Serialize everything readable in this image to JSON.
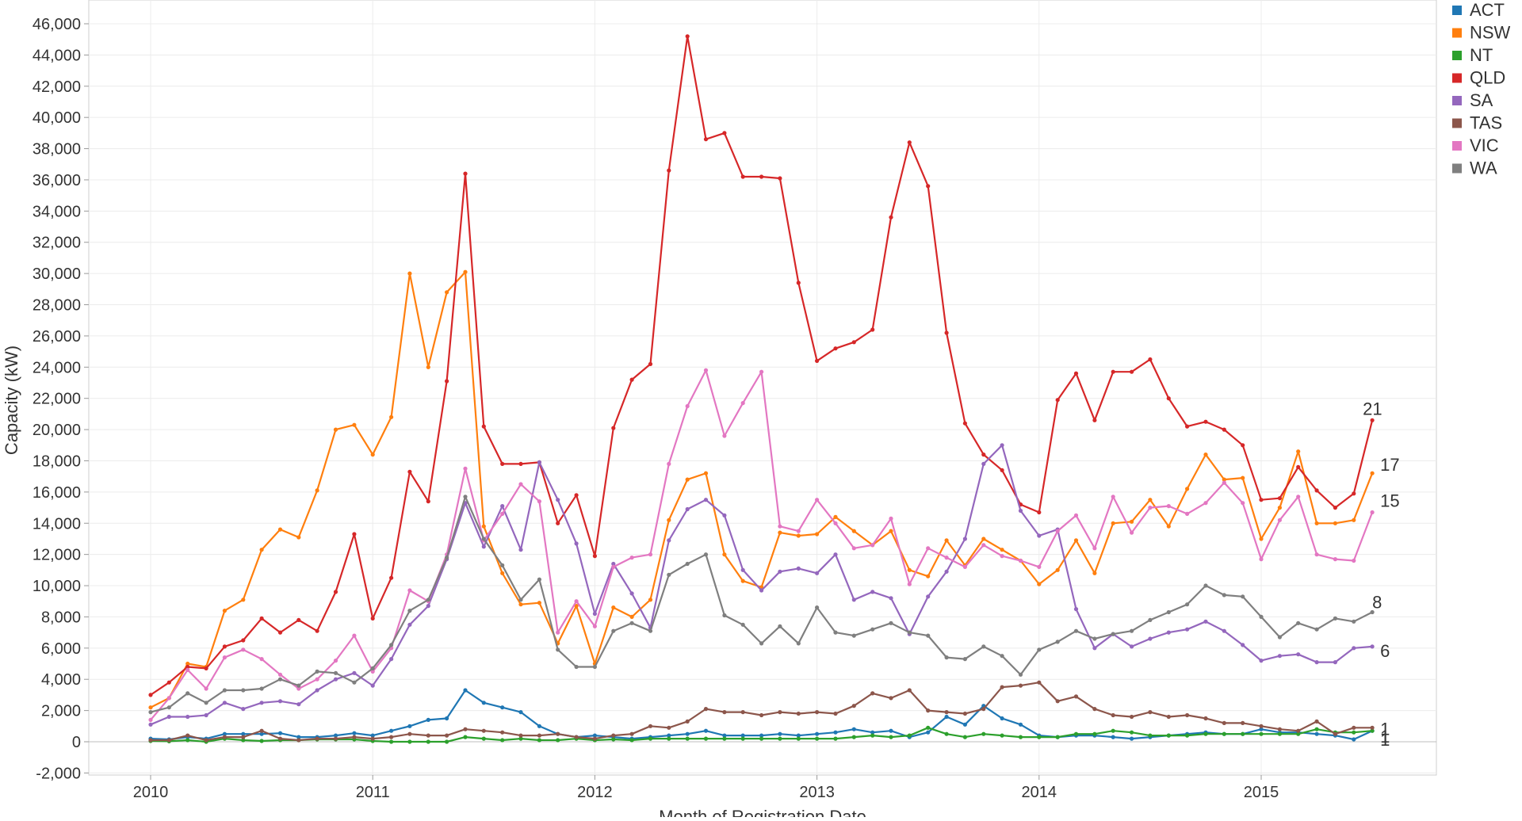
{
  "chart_data": {
    "type": "line",
    "xlabel": "Month of Registration Date",
    "ylabel": "Capacity (kW)",
    "ylim": [
      -3000,
      47000
    ],
    "xlim": [
      "2009-09",
      "2015-12"
    ],
    "grid": true,
    "legend_position": "top-right",
    "x_ticks": [
      "2010",
      "2011",
      "2012",
      "2013",
      "2014",
      "2015"
    ],
    "y_ticks": [
      "-2,000",
      "0",
      "2,000",
      "4,000",
      "6,000",
      "8,000",
      "10,000",
      "12,000",
      "14,000",
      "16,000",
      "18,000",
      "20,000",
      "22,000",
      "24,000",
      "26,000",
      "28,000",
      "30,000",
      "32,000",
      "34,000",
      "36,000",
      "38,000",
      "40,000",
      "42,000",
      "44,000",
      "46,000"
    ],
    "x_start": "2010-01",
    "series": [
      {
        "name": "ACT",
        "color": "#1f77b4",
        "end_label": "1",
        "values": [
          200,
          150,
          300,
          200,
          500,
          500,
          500,
          550,
          300,
          300,
          400,
          550,
          400,
          700,
          1000,
          1400,
          1500,
          3300,
          2500,
          2200,
          1900,
          1000,
          500,
          300,
          400,
          300,
          200,
          300,
          400,
          500,
          700,
          400,
          400,
          400,
          500,
          400,
          500,
          600,
          800,
          600,
          700,
          300,
          600,
          1600,
          1100,
          2300,
          1500,
          1100,
          400,
          300,
          400,
          400,
          300,
          200,
          300,
          400,
          500,
          600,
          500,
          500,
          800,
          600,
          600,
          500,
          400,
          150,
          700
        ]
      },
      {
        "name": "NSW",
        "color": "#ff7f0e",
        "end_label": "17",
        "values": [
          2200,
          2800,
          5000,
          4800,
          8400,
          9100,
          12300,
          13600,
          13100,
          16100,
          20000,
          20300,
          18400,
          20800,
          30000,
          24000,
          28800,
          30100,
          13800,
          10800,
          8800,
          8900,
          6300,
          8700,
          5000,
          8600,
          8000,
          9100,
          14200,
          16800,
          17200,
          12000,
          10300,
          9900,
          13400,
          13200,
          13300,
          14400,
          13500,
          12600,
          13500,
          11000,
          10600,
          12900,
          11300,
          13000,
          12300,
          11600,
          10100,
          11000,
          12900,
          10800,
          14000,
          14100,
          15500,
          13800,
          16200,
          18400,
          16800,
          16900,
          13000,
          15000,
          18600,
          14000,
          14000,
          14200,
          17200
        ]
      },
      {
        "name": "NT",
        "color": "#2ca02c",
        "end_label": "1",
        "values": [
          50,
          30,
          100,
          0,
          200,
          100,
          50,
          100,
          100,
          150,
          150,
          150,
          50,
          0,
          0,
          0,
          0,
          300,
          200,
          100,
          200,
          100,
          100,
          200,
          100,
          150,
          100,
          200,
          200,
          200,
          200,
          200,
          200,
          200,
          200,
          200,
          200,
          200,
          300,
          400,
          300,
          400,
          900,
          500,
          300,
          500,
          400,
          300,
          300,
          300,
          500,
          500,
          700,
          600,
          400,
          400,
          400,
          500,
          500,
          500,
          500,
          500,
          500,
          800,
          600,
          600,
          700
        ]
      },
      {
        "name": "QLD",
        "color": "#d62728",
        "end_label": "21",
        "values": [
          3000,
          3800,
          4800,
          4700,
          6100,
          6500,
          7900,
          7000,
          7800,
          7100,
          9600,
          13300,
          7900,
          10500,
          17300,
          15400,
          23100,
          36400,
          20200,
          17800,
          17800,
          17900,
          14000,
          15800,
          11900,
          20100,
          23200,
          24200,
          36600,
          45200,
          38600,
          39000,
          36200,
          36200,
          36100,
          29400,
          24400,
          25200,
          25600,
          26400,
          33600,
          38400,
          35600,
          26200,
          20400,
          18400,
          17400,
          15200,
          14700,
          21900,
          23600,
          20600,
          23700,
          23700,
          24500,
          22000,
          20200,
          20500,
          20000,
          19000,
          15500,
          15600,
          17600,
          16100,
          15000,
          15900,
          20600
        ]
      },
      {
        "name": "SA",
        "color": "#9467bd",
        "end_label": "6",
        "values": [
          1100,
          1600,
          1600,
          1700,
          2500,
          2100,
          2500,
          2600,
          2400,
          3300,
          4000,
          4400,
          3600,
          5300,
          7500,
          8700,
          11700,
          15300,
          12500,
          15100,
          12300,
          17900,
          15500,
          12700,
          8200,
          11400,
          9500,
          7300,
          12900,
          14900,
          15500,
          14500,
          11000,
          9700,
          10900,
          11100,
          10800,
          12000,
          9100,
          9600,
          9200,
          6900,
          9300,
          10900,
          13000,
          17800,
          19000,
          14800,
          13200,
          13600,
          8500,
          6000,
          6900,
          6100,
          6600,
          7000,
          7200,
          7700,
          7100,
          6200,
          5200,
          5500,
          5600,
          5100,
          5100,
          6000,
          6100
        ]
      },
      {
        "name": "TAS",
        "color": "#8c564b",
        "end_label": "1",
        "values": [
          100,
          100,
          400,
          100,
          300,
          300,
          700,
          200,
          100,
          200,
          200,
          300,
          200,
          300,
          500,
          400,
          400,
          800,
          700,
          600,
          400,
          400,
          500,
          300,
          200,
          400,
          500,
          1000,
          900,
          1300,
          2100,
          1900,
          1900,
          1700,
          1900,
          1800,
          1900,
          1800,
          2300,
          3100,
          2800,
          3300,
          2000,
          1900,
          1800,
          2100,
          3500,
          3600,
          3800,
          2600,
          2900,
          2100,
          1700,
          1600,
          1900,
          1600,
          1700,
          1500,
          1200,
          1200,
          1000,
          800,
          700,
          1300,
          500,
          900,
          900
        ]
      },
      {
        "name": "VIC",
        "color": "#e377c2",
        "end_label": "15",
        "values": [
          1400,
          2800,
          4600,
          3400,
          5400,
          5900,
          5300,
          4300,
          3400,
          4000,
          5200,
          6800,
          4500,
          6000,
          9700,
          9000,
          12000,
          17500,
          12900,
          14600,
          16500,
          15400,
          7000,
          9000,
          7400,
          11200,
          11800,
          12000,
          17800,
          21500,
          23800,
          19600,
          21700,
          23700,
          13800,
          13500,
          15500,
          14000,
          12400,
          12600,
          14300,
          10100,
          12400,
          11800,
          11200,
          12600,
          11900,
          11600,
          11200,
          13500,
          14500,
          12400,
          15700,
          13400,
          15000,
          15100,
          14600,
          15300,
          16600,
          15300,
          11700,
          14200,
          15700,
          12000,
          11700,
          11600,
          14700
        ]
      },
      {
        "name": "WA",
        "color": "#7f7f7f",
        "end_label": "8",
        "values": [
          1900,
          2200,
          3100,
          2500,
          3300,
          3300,
          3400,
          4000,
          3600,
          4500,
          4400,
          3800,
          4700,
          6200,
          8400,
          9100,
          11800,
          15700,
          13000,
          11300,
          9100,
          10400,
          5900,
          4800,
          4800,
          7100,
          7600,
          7100,
          10700,
          11400,
          12000,
          8100,
          7500,
          6300,
          7400,
          6300,
          8600,
          7000,
          6800,
          7200,
          7600,
          7000,
          6800,
          5400,
          5300,
          6100,
          5500,
          4300,
          5900,
          6400,
          7100,
          6600,
          6900,
          7100,
          7800,
          8300,
          8800,
          10000,
          9400,
          9300,
          8000,
          6700,
          7600,
          7200,
          7900,
          7700,
          8300
        ]
      }
    ]
  }
}
